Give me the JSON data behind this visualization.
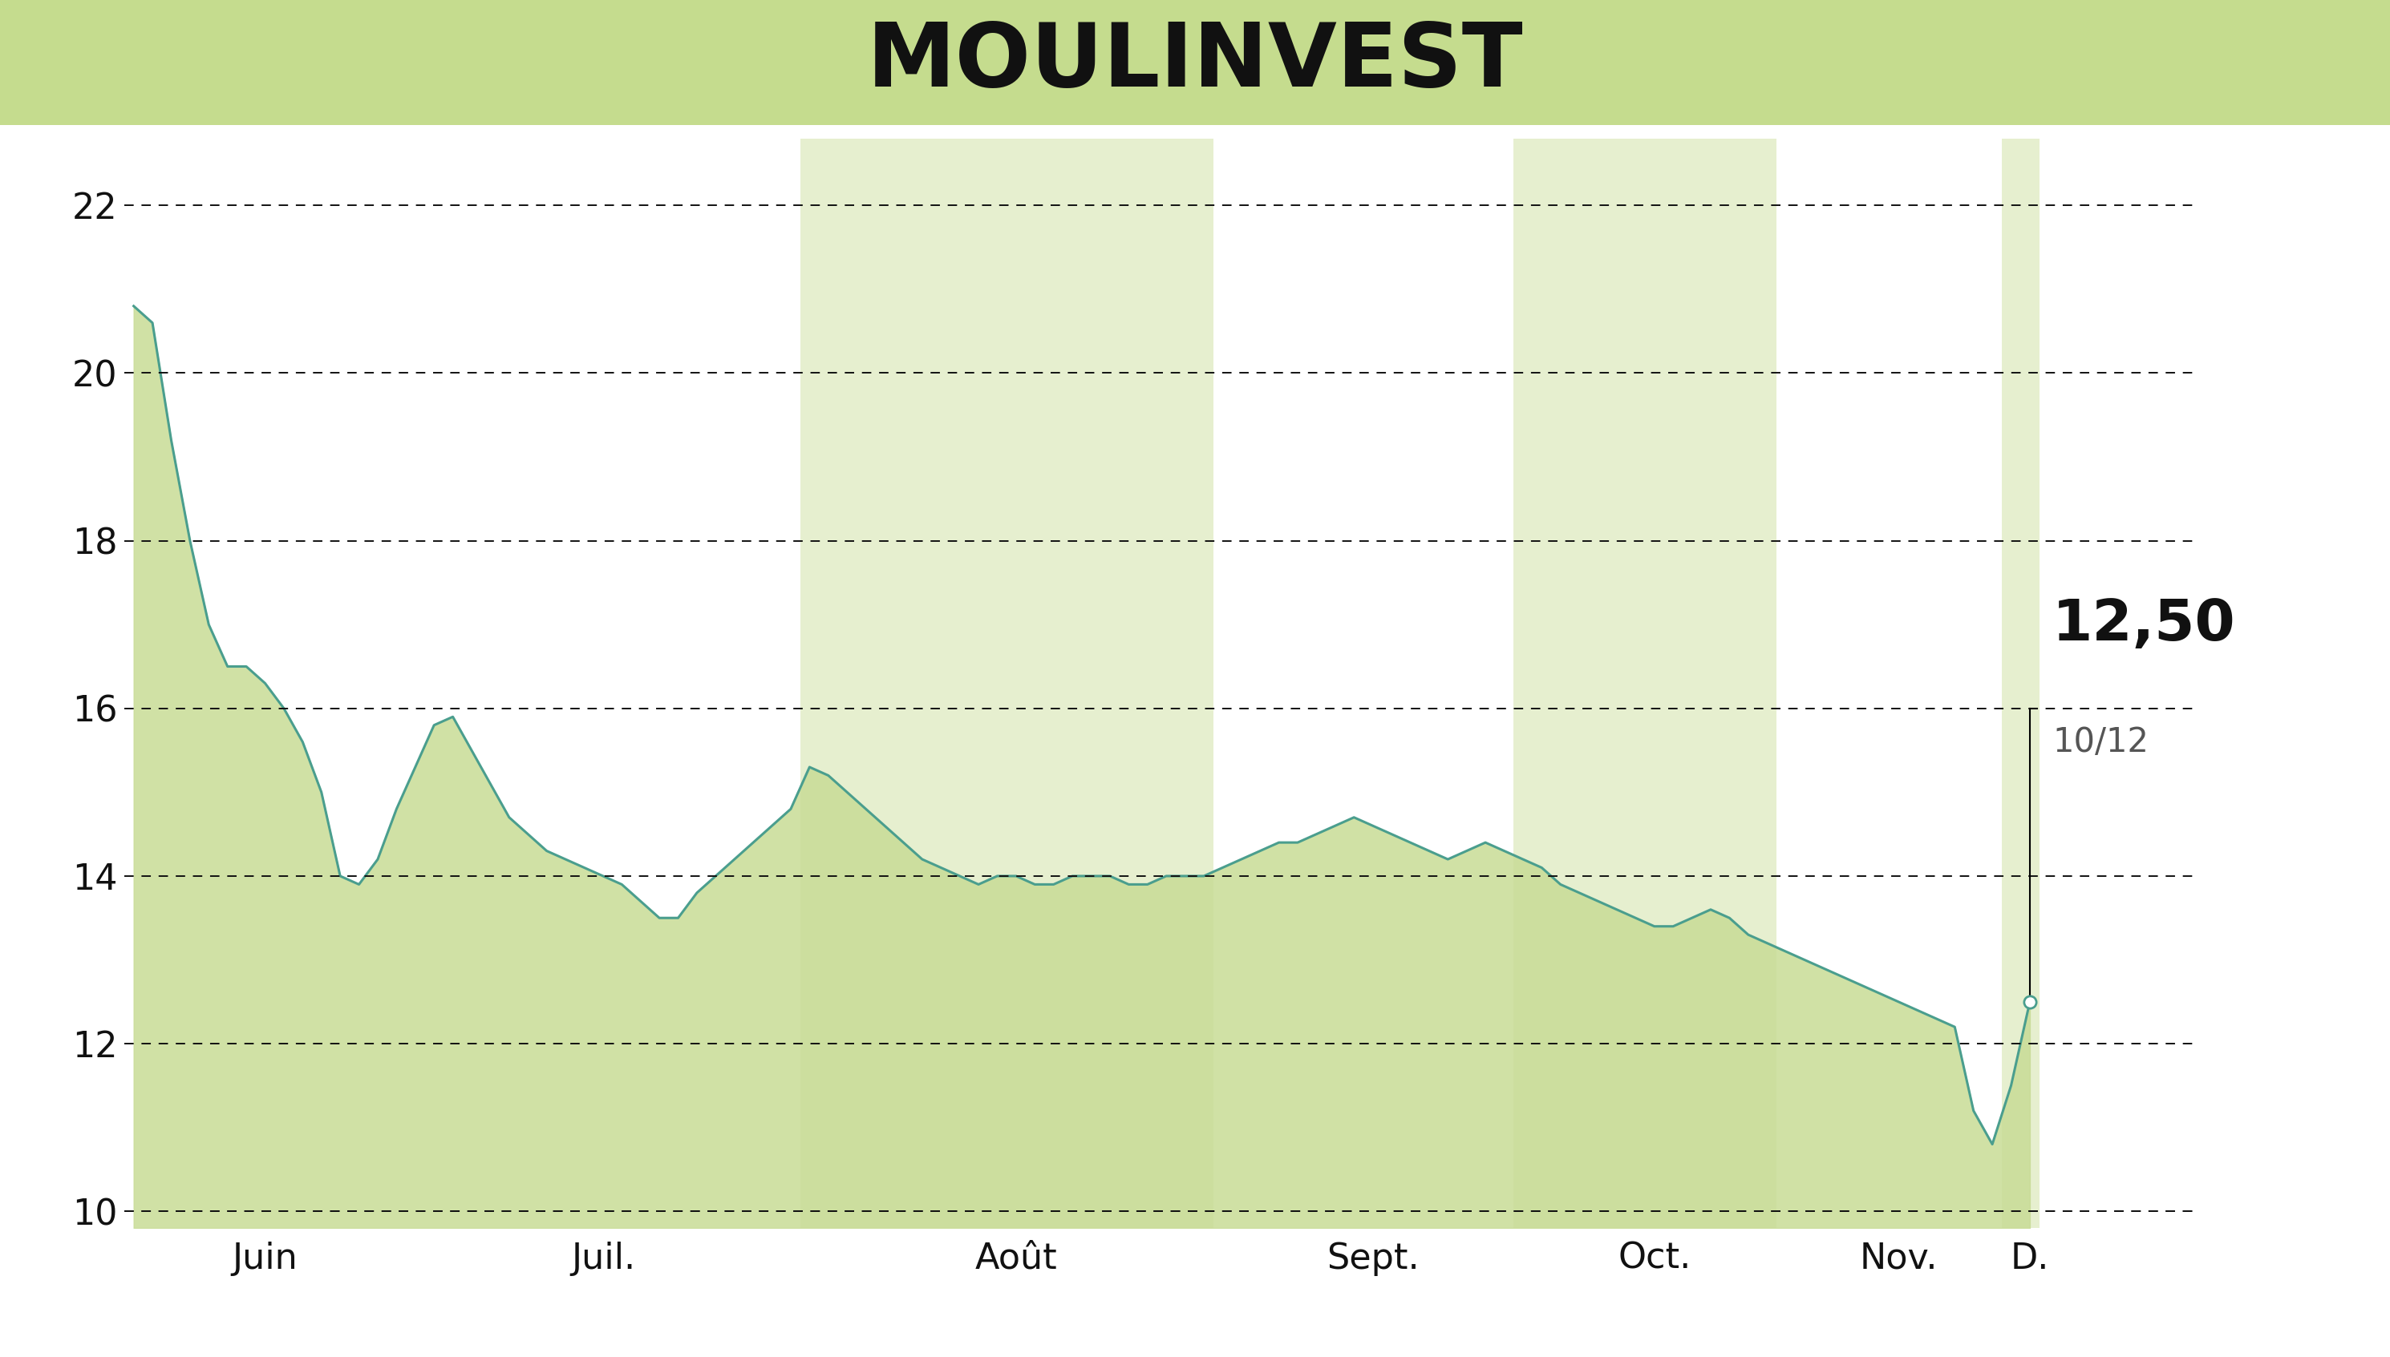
{
  "title": "MOULINVEST",
  "title_bg_color": "#c5dC8e",
  "bg_color": "#ffffff",
  "line_color": "#4a9e8e",
  "fill_color": "#c8dc96",
  "annotation_price": "12,50",
  "annotation_date": "10/12",
  "yticks": [
    10,
    12,
    14,
    16,
    18,
    20,
    22
  ],
  "ylim": [
    9.8,
    22.8
  ],
  "xlabel_months": [
    "Juin",
    "Juil.",
    "Août",
    "Sept.",
    "Oct.",
    "Nov.",
    "D."
  ],
  "band_color": "#c8dc96",
  "band_alpha": 0.45,
  "prices": [
    20.8,
    20.6,
    19.2,
    18.0,
    17.0,
    16.5,
    16.5,
    16.3,
    16.0,
    15.6,
    15.0,
    14.0,
    13.9,
    14.2,
    14.8,
    15.3,
    15.8,
    15.9,
    15.5,
    15.1,
    14.7,
    14.5,
    14.3,
    14.2,
    14.1,
    14.0,
    13.9,
    13.7,
    13.5,
    13.5,
    13.8,
    14.0,
    14.2,
    14.4,
    14.6,
    14.8,
    15.3,
    15.2,
    15.0,
    14.8,
    14.6,
    14.4,
    14.2,
    14.1,
    14.0,
    13.9,
    14.0,
    14.0,
    13.9,
    13.9,
    14.0,
    14.0,
    14.0,
    13.9,
    13.9,
    14.0,
    14.0,
    14.0,
    14.1,
    14.2,
    14.3,
    14.4,
    14.4,
    14.5,
    14.6,
    14.7,
    14.6,
    14.5,
    14.4,
    14.3,
    14.2,
    14.3,
    14.4,
    14.3,
    14.2,
    14.1,
    13.9,
    13.8,
    13.7,
    13.6,
    13.5,
    13.4,
    13.4,
    13.5,
    13.6,
    13.5,
    13.3,
    13.2,
    13.1,
    13.0,
    12.9,
    12.8,
    12.7,
    12.6,
    12.5,
    12.4,
    12.3,
    12.2,
    11.2,
    10.8,
    11.5,
    12.5
  ],
  "month_boundaries": [
    0,
    14,
    36,
    58,
    74,
    88,
    100,
    102
  ],
  "month_has_bg": [
    false,
    false,
    true,
    false,
    true,
    false,
    true
  ]
}
